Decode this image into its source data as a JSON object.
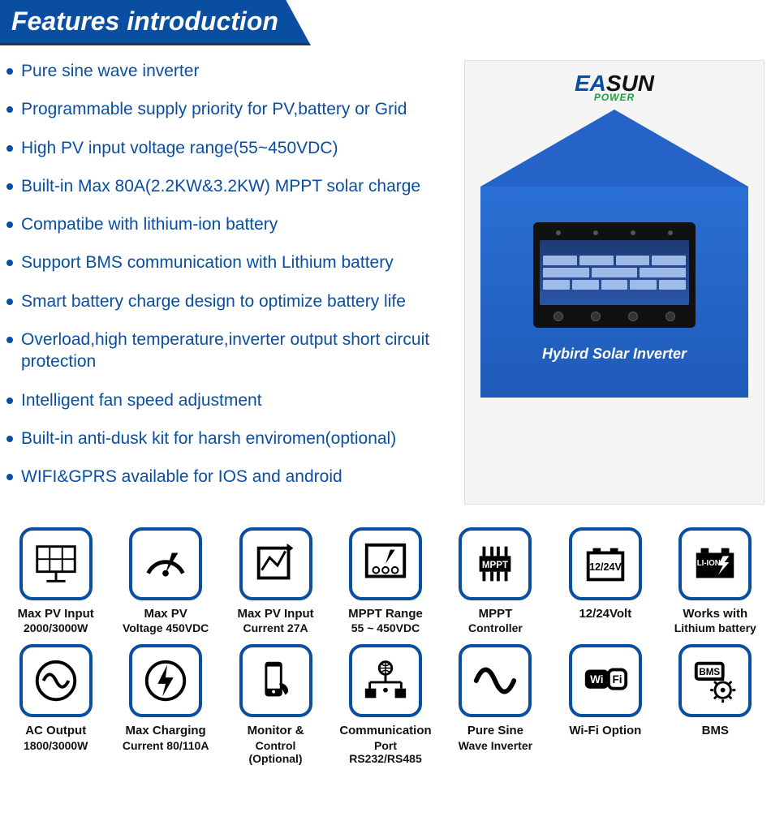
{
  "header": {
    "title": "Features introduction"
  },
  "brand": {
    "ea": "EA",
    "sun": "SUN",
    "power": "POWER"
  },
  "features": [
    "Pure sine wave inverter",
    "Programmable supply priority for PV,battery or Grid",
    "High PV input voltage range(55~450VDC)",
    "Built-in Max 80A(2.2KW&3.2KW) MPPT solar charge",
    "Compatibe with lithium-ion battery",
    "Support BMS communication with Lithium battery",
    "Smart battery charge design to optimize battery life",
    "Overload,high temperature,inverter output short circuit protection",
    "Intelligent fan speed adjustment",
    "Built-in anti-dusk kit for harsh enviromen(optional)",
    "WIFI&GPRS available for IOS and android"
  ],
  "device": {
    "label": "Hybird Solar Inverter"
  },
  "colors": {
    "primary": "#0a4ea2",
    "feature_text": "#0a4ea2",
    "icon_border": "#0a4ea2",
    "device_blue_top": "#2a6fd4",
    "device_blue_bottom": "#1f5bb8",
    "green": "#1a9e3e",
    "black": "#111111",
    "bg": "#ffffff",
    "panel_bg": "#f5f5f5"
  },
  "specs": [
    {
      "icon": "solar-panel",
      "title": "Max PV Input",
      "sub": "2000/3000W"
    },
    {
      "icon": "gauge",
      "title": "Max PV",
      "sub": "Voltage 450VDC"
    },
    {
      "icon": "chart-box",
      "title": "Max PV Input",
      "sub": "Current 27A"
    },
    {
      "icon": "meter",
      "title": "MPPT Range",
      "sub": "55 ~ 450VDC"
    },
    {
      "icon": "mppt-chip",
      "title": "MPPT",
      "sub": "Controller"
    },
    {
      "icon": "battery",
      "title": "12/24Volt",
      "sub": ""
    },
    {
      "icon": "li-ion",
      "title": "Works with",
      "sub": "Lithium battery"
    },
    {
      "icon": "ac-wave",
      "title": "AC Output",
      "sub": "1800/3000W"
    },
    {
      "icon": "bolt",
      "title": "Max Charging",
      "sub": "Current 80/110A"
    },
    {
      "icon": "phone-touch",
      "title": "Monitor &",
      "sub": "Control (Optional)"
    },
    {
      "icon": "network",
      "title": "Communication",
      "sub": "Port RS232/RS485"
    },
    {
      "icon": "sine",
      "title": "Pure Sine",
      "sub": "Wave Inverter"
    },
    {
      "icon": "wifi",
      "title": "Wi-Fi Option",
      "sub": ""
    },
    {
      "icon": "bms",
      "title": "BMS",
      "sub": ""
    }
  ]
}
